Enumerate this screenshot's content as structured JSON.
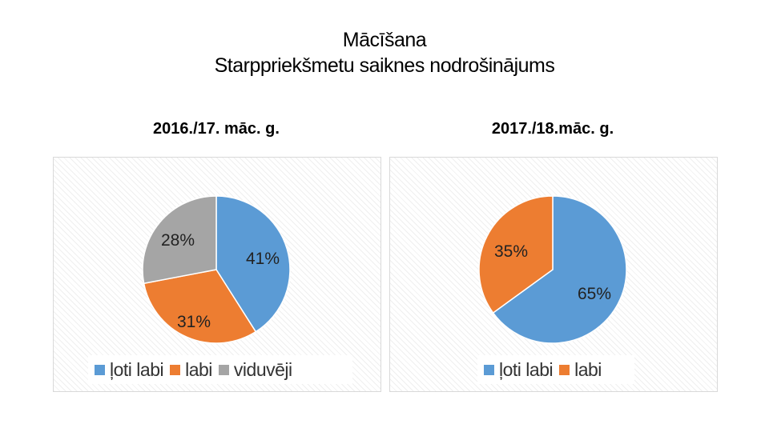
{
  "slide": {
    "title_line1": "Mācīšana",
    "title_line2": "Starppriekšmetu saiknes nodrošinājums"
  },
  "colors": {
    "blue": "#5b9bd5",
    "orange": "#ed7d31",
    "gray": "#a5a5a5"
  },
  "chart_data": [
    {
      "type": "pie",
      "title": "2016./17. māc. g.",
      "categories": [
        "ļoti labi",
        "labi",
        "viduvēji"
      ],
      "values": [
        41,
        31,
        28
      ],
      "data_labels": [
        "41%",
        "31%",
        "28%"
      ],
      "colors": [
        "#5b9bd5",
        "#ed7d31",
        "#a5a5a5"
      ],
      "legend": "bottom"
    },
    {
      "type": "pie",
      "title": "2017./18.māc. g.",
      "categories": [
        "ļoti labi",
        "labi"
      ],
      "values": [
        65,
        35
      ],
      "data_labels": [
        "65%",
        "35%"
      ],
      "colors": [
        "#5b9bd5",
        "#ed7d31"
      ],
      "legend": "bottom"
    }
  ]
}
